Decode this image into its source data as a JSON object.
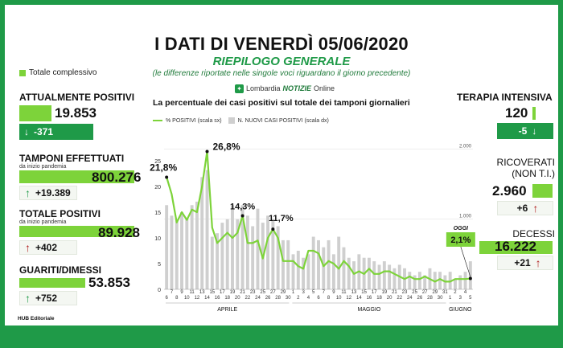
{
  "header": {
    "title": "I DATI DI VENERDÌ 05/06/2020",
    "subtitle": "RIEPILOGO GENERALE",
    "note": "(le differenze riportate nelle singole voci riguardano il giorno precedente)",
    "brand_prefix": "Lombardia",
    "brand_name": "NOTIZIE",
    "brand_suffix": "Online"
  },
  "legend_total": "Totale complessivo",
  "left": {
    "attualmente_positivi": {
      "label": "ATTUALMENTE POSITIVI",
      "value": "19.853",
      "delta": "-371"
    },
    "tamponi": {
      "label": "TAMPONI EFFETTUATI",
      "sub": "da inizio pandemia",
      "value": "800.276",
      "delta": "+19.389"
    },
    "totale_positivi": {
      "label": "TOTALE POSITIVI",
      "sub": "da inizio pandemia",
      "value": "89.928",
      "delta": "+402"
    },
    "guariti": {
      "label": "GUARITI/DIMESSI",
      "value": "53.853",
      "delta": "+752"
    }
  },
  "right": {
    "terapia": {
      "label": "TERAPIA INTENSIVA",
      "value": "120",
      "delta": "-5"
    },
    "ricoverati": {
      "label1": "RICOVERATI",
      "label2": "(NON T.I.)",
      "value": "2.960",
      "delta": "+6"
    },
    "decessi": {
      "label": "DECESSI",
      "value": "16.222",
      "delta": "+21"
    }
  },
  "footer": "HUB Editoriale",
  "colors": {
    "green_dark": "#1f9a48",
    "green_light": "#7dd33a",
    "bar_gray": "#cfcfcf",
    "red": "#b01e1e"
  },
  "chart_data": {
    "type": "bar",
    "title": "La percentuale dei casi positivi sul totale dei tamponi giornalieri",
    "legend": [
      "% POSITIVI (scala sx)",
      "N. NUOVI CASI POSITIVI (scala dx)"
    ],
    "y_left_ticks": [
      "0",
      "5",
      "10",
      "15",
      "20",
      "25"
    ],
    "y_right_ticks": [
      "1.000",
      "2.000"
    ],
    "ylim_left": [
      0,
      30
    ],
    "ylim_right": [
      0,
      2200
    ],
    "months": [
      "APRILE",
      "MAGGIO",
      "GIUGNO"
    ],
    "day_labels": [
      "6",
      "7",
      "8",
      "9",
      "10",
      "11",
      "12",
      "13",
      "14",
      "15",
      "16",
      "17",
      "18",
      "19",
      "20",
      "21",
      "22",
      "23",
      "24",
      "25",
      "26",
      "27",
      "28",
      "29",
      "30",
      "1",
      "2",
      "3",
      "4",
      "5",
      "6",
      "7",
      "8",
      "9",
      "10",
      "11",
      "12",
      "13",
      "14",
      "15",
      "16",
      "17",
      "18",
      "19",
      "20",
      "21",
      "22",
      "23",
      "24",
      "25",
      "26",
      "27",
      "28",
      "29",
      "30",
      "31",
      "1",
      "2",
      "3",
      "4",
      "5"
    ],
    "series": [
      {
        "name": "% POSITIVI (scala sx)",
        "type": "line",
        "values": [
          21.8,
          18.5,
          13,
          15,
          13.5,
          15.5,
          15,
          20,
          26.8,
          12,
          9,
          10,
          11,
          10,
          11,
          14.3,
          9,
          9,
          9.5,
          6,
          10,
          11.7,
          10,
          5.5,
          5.5,
          5.5,
          4.5,
          4,
          7.5,
          7.5,
          7,
          4.5,
          5.5,
          5,
          4,
          5.5,
          4.5,
          3,
          3.5,
          3,
          4,
          3,
          3,
          3.5,
          3.5,
          3,
          2.5,
          2,
          2.5,
          2,
          2,
          2.5,
          2,
          1.5,
          2,
          1.5,
          1.5,
          2,
          2,
          2,
          2.1
        ]
      },
      {
        "name": "N. NUOVI CASI POSITIVI (scala dx)",
        "type": "bar",
        "values": [
          1200,
          1050,
          1000,
          1100,
          1000,
          1200,
          1250,
          1600,
          1700,
          750,
          800,
          950,
          1000,
          1200,
          1000,
          1200,
          1050,
          900,
          1150,
          950,
          1050,
          1000,
          900,
          700,
          700,
          500,
          550,
          450,
          500,
          750,
          700,
          600,
          700,
          500,
          750,
          600,
          450,
          400,
          500,
          450,
          450,
          400,
          350,
          400,
          350,
          300,
          350,
          300,
          250,
          200,
          250,
          200,
          300,
          250,
          250,
          200,
          250,
          150,
          200,
          250,
          400
        ]
      }
    ],
    "annotations": [
      {
        "label": "21,8%",
        "x": "6",
        "y": 21.8
      },
      {
        "label": "26,8%",
        "x": "14",
        "y": 26.8
      },
      {
        "label": "14,3%",
        "x": "21",
        "y": 14.3
      },
      {
        "label": "11,7%",
        "x": "27",
        "y": 11.7
      },
      {
        "label": "OGGI",
        "x": "5",
        "y": 2.1
      },
      {
        "label": "2,1%",
        "x": "5",
        "y": 2.1
      }
    ]
  }
}
